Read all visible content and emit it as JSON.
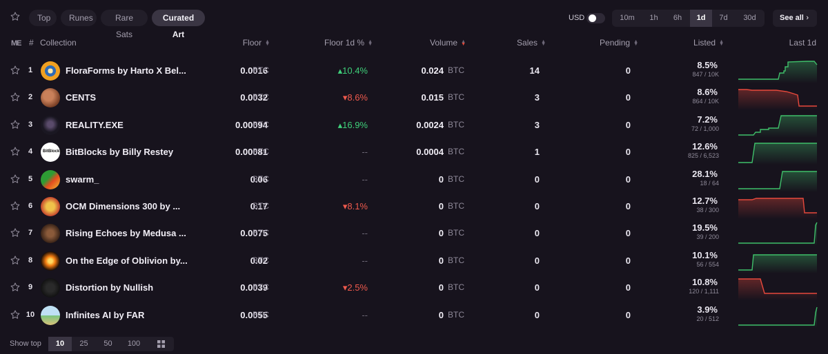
{
  "filters": {
    "pills": [
      {
        "label": "Top",
        "active": false
      },
      {
        "label": "Runes",
        "active": false
      },
      {
        "label": "Rare Sats",
        "active": false
      },
      {
        "label": "Curated Art",
        "active": true
      }
    ],
    "currency_label": "USD",
    "currency_toggle_on": false,
    "timeframes": [
      {
        "label": "10m",
        "active": false
      },
      {
        "label": "1h",
        "active": false
      },
      {
        "label": "6h",
        "active": false
      },
      {
        "label": "1d",
        "active": true
      },
      {
        "label": "7d",
        "active": false
      },
      {
        "label": "30d",
        "active": false
      }
    ],
    "see_all": "See all"
  },
  "table": {
    "logo": "ME",
    "headers": {
      "rank": "#",
      "collection": "Collection",
      "floor": "Floor",
      "floor_change": "Floor 1d %",
      "volume": "Volume",
      "sales": "Sales",
      "pending": "Pending",
      "listed": "Listed",
      "last": "Last 1d"
    },
    "unit": "BTC",
    "rows": [
      {
        "rank": "1",
        "name": "FloraForms by Harto X Bel...",
        "floor": "0.0016",
        "change": "10.4%",
        "trend": "up",
        "volume": "0.024",
        "sales": "14",
        "pending": "0",
        "listed_pct": "8.5%",
        "listed_sub": "847 / 10K",
        "spark_color": "#3fbf6a",
        "avatar": "flora-avatar"
      },
      {
        "rank": "2",
        "name": "CENTS",
        "floor": "0.0032",
        "change": "8.6%",
        "trend": "down",
        "volume": "0.015",
        "sales": "3",
        "pending": "0",
        "listed_pct": "8.6%",
        "listed_sub": "864 / 10K",
        "spark_color": "#e8493c",
        "avatar": "cents-avatar"
      },
      {
        "rank": "3",
        "name": "REALITY.EXE",
        "floor": "0.00094",
        "change": "16.9%",
        "trend": "up",
        "volume": "0.0024",
        "sales": "3",
        "pending": "0",
        "listed_pct": "7.2%",
        "listed_sub": "72 / 1,000",
        "spark_color": "#3fbf6a",
        "avatar": "reality-avatar"
      },
      {
        "rank": "4",
        "name": "BitBlocks by Billy Restey",
        "floor": "0.00081",
        "change": "--",
        "trend": "flat",
        "volume": "0.0004",
        "sales": "1",
        "pending": "0",
        "listed_pct": "12.6%",
        "listed_sub": "825 / 6,523",
        "spark_color": "#3fbf6a",
        "avatar": "bitblocks-avatar"
      },
      {
        "rank": "5",
        "name": "swarm_",
        "floor": "0.06",
        "change": "--",
        "trend": "flat",
        "volume": "0",
        "sales": "0",
        "pending": "0",
        "listed_pct": "28.1%",
        "listed_sub": "18 / 64",
        "spark_color": "#3fbf6a",
        "avatar": "swarm-avatar"
      },
      {
        "rank": "6",
        "name": "OCM Dimensions 300 by ...",
        "floor": "0.17",
        "change": "8.1%",
        "trend": "down",
        "volume": "0",
        "sales": "0",
        "pending": "0",
        "listed_pct": "12.7%",
        "listed_sub": "38 / 300",
        "spark_color": "#e8493c",
        "avatar": "ocm-avatar"
      },
      {
        "rank": "7",
        "name": "Rising Echoes by Medusa ...",
        "floor": "0.0075",
        "change": "--",
        "trend": "flat",
        "volume": "0",
        "sales": "0",
        "pending": "0",
        "listed_pct": "19.5%",
        "listed_sub": "39 / 200",
        "spark_color": "#3fbf6a",
        "avatar": "echoes-avatar"
      },
      {
        "rank": "8",
        "name": "On the Edge of Oblivion by...",
        "floor": "0.02",
        "change": "--",
        "trend": "flat",
        "volume": "0",
        "sales": "0",
        "pending": "0",
        "listed_pct": "10.1%",
        "listed_sub": "56 / 554",
        "spark_color": "#3fbf6a",
        "avatar": "oblivion-avatar"
      },
      {
        "rank": "9",
        "name": "Distortion by Nullish",
        "floor": "0.0039",
        "change": "2.5%",
        "trend": "down",
        "volume": "0",
        "sales": "0",
        "pending": "0",
        "listed_pct": "10.8%",
        "listed_sub": "120 / 1,111",
        "spark_color": "#e8493c",
        "avatar": "distortion-avatar"
      },
      {
        "rank": "10",
        "name": "Infinites AI by FAR",
        "floor": "0.0055",
        "change": "--",
        "trend": "flat",
        "volume": "0",
        "sales": "0",
        "pending": "0",
        "listed_pct": "3.9%",
        "listed_sub": "20 / 512",
        "spark_color": "#3fbf6a",
        "avatar": "infinites-avatar"
      }
    ]
  },
  "footer": {
    "show_top_label": "Show top",
    "page_sizes": [
      {
        "label": "10",
        "active": true
      },
      {
        "label": "25",
        "active": false
      },
      {
        "label": "50",
        "active": false
      },
      {
        "label": "100",
        "active": false
      }
    ],
    "grid_icon": "grid-view-icon"
  },
  "colors": {
    "background": "#17131d",
    "up": "#3fd07a",
    "down": "#ef5a4d",
    "muted": "#8f8a99"
  }
}
